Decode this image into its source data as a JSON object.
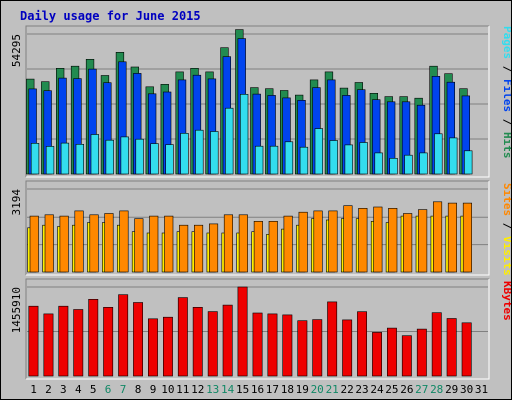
{
  "title": "Daily usage for June 2015",
  "colors": {
    "hits": "#228b50",
    "files": "#0044ee",
    "pages": "#33ddee",
    "visits": "#ffee00",
    "sites": "#ff8800",
    "kbytes": "#ee0000",
    "weekend_label": "#118866",
    "weekday_label": "#000000",
    "title": "#0000c0"
  },
  "chart_data": [
    {
      "type": "bar",
      "name": "hits-files-pages",
      "ymax_label": "54295",
      "ymax": 54295,
      "legend": [
        {
          "label": "Hits",
          "color": "#228b50"
        },
        {
          "label": "Files",
          "color": "#0044ee"
        },
        {
          "label": "Pages",
          "color": "#33ddee"
        }
      ],
      "series": [
        {
          "name": "Hits",
          "values": [
            36800,
            35800,
            41000,
            41800,
            44500,
            38200,
            47200,
            41500,
            33800,
            34800,
            39600,
            41000,
            39600,
            49000,
            56000,
            33500,
            33100,
            32400,
            30600,
            36500,
            39600,
            33300,
            35500,
            31300,
            30000,
            30000,
            29400,
            41800,
            38900,
            33100
          ]
        },
        {
          "name": "Files",
          "values": [
            33000,
            32300,
            37200,
            37000,
            40700,
            35400,
            43500,
            39000,
            31100,
            31800,
            36500,
            38300,
            36900,
            45500,
            52500,
            31000,
            30500,
            29500,
            28600,
            33500,
            36500,
            30500,
            32700,
            28800,
            28000,
            28000,
            26700,
            37900,
            35600,
            30300
          ]
        },
        {
          "name": "Pages",
          "values": [
            11900,
            10700,
            12000,
            11500,
            15300,
            13100,
            14400,
            13500,
            11800,
            11400,
            15800,
            17000,
            16500,
            25500,
            30900,
            10800,
            10800,
            12500,
            10400,
            17600,
            13000,
            11300,
            12200,
            8200,
            6100,
            7300,
            8200,
            15600,
            14000,
            9000
          ]
        }
      ]
    },
    {
      "type": "bar",
      "name": "visits-sites",
      "ymax_label": "3194",
      "ymax": 3194,
      "legend": [
        {
          "label": "Visits",
          "color": "#ffee00"
        },
        {
          "label": "Sites",
          "color": "#ff8800"
        }
      ],
      "series": [
        {
          "name": "Visits",
          "values": [
            1700,
            1800,
            1750,
            1800,
            1900,
            1900,
            1800,
            1550,
            1500,
            1500,
            1550,
            1550,
            1500,
            1500,
            1500,
            1550,
            1450,
            1650,
            1800,
            2050,
            2000,
            2050,
            2050,
            1950,
            1900,
            2150,
            2150,
            2150,
            2150,
            2150
          ]
        },
        {
          "name": "Sites",
          "values": [
            2150,
            2200,
            2150,
            2350,
            2200,
            2250,
            2350,
            2050,
            2150,
            2150,
            1800,
            1800,
            1850,
            2200,
            2200,
            1950,
            1950,
            2150,
            2300,
            2350,
            2350,
            2550,
            2450,
            2500,
            2450,
            2250,
            2400,
            2700,
            2650,
            2650
          ]
        }
      ]
    },
    {
      "type": "bar",
      "name": "kbytes",
      "ymax_label": "1455910",
      "ymax": 1455910,
      "legend": [
        {
          "label": "KBytes",
          "color": "#ee0000"
        }
      ],
      "series": [
        {
          "name": "KBytes",
          "values": [
            1142000,
            1016000,
            1142000,
            1088000,
            1255000,
            1124000,
            1330000,
            1202000,
            935000,
            962000,
            1282000,
            1124000,
            1053000,
            1160000,
            1456000,
            1030000,
            1016000,
            1000000,
            904000,
            922000,
            1212000,
            918000,
            1052000,
            714000,
            784000,
            660000,
            767000,
            1035000,
            940000,
            870000
          ]
        }
      ]
    }
  ],
  "x_axis": {
    "days": [
      "1",
      "2",
      "3",
      "4",
      "5",
      "6",
      "7",
      "8",
      "9",
      "10",
      "11",
      "12",
      "13",
      "14",
      "15",
      "16",
      "17",
      "18",
      "19",
      "20",
      "21",
      "22",
      "23",
      "24",
      "25",
      "26",
      "27",
      "28",
      "29",
      "30",
      "31"
    ],
    "weekend_days": [
      "6",
      "7",
      "13",
      "14",
      "20",
      "21",
      "27",
      "28"
    ]
  }
}
